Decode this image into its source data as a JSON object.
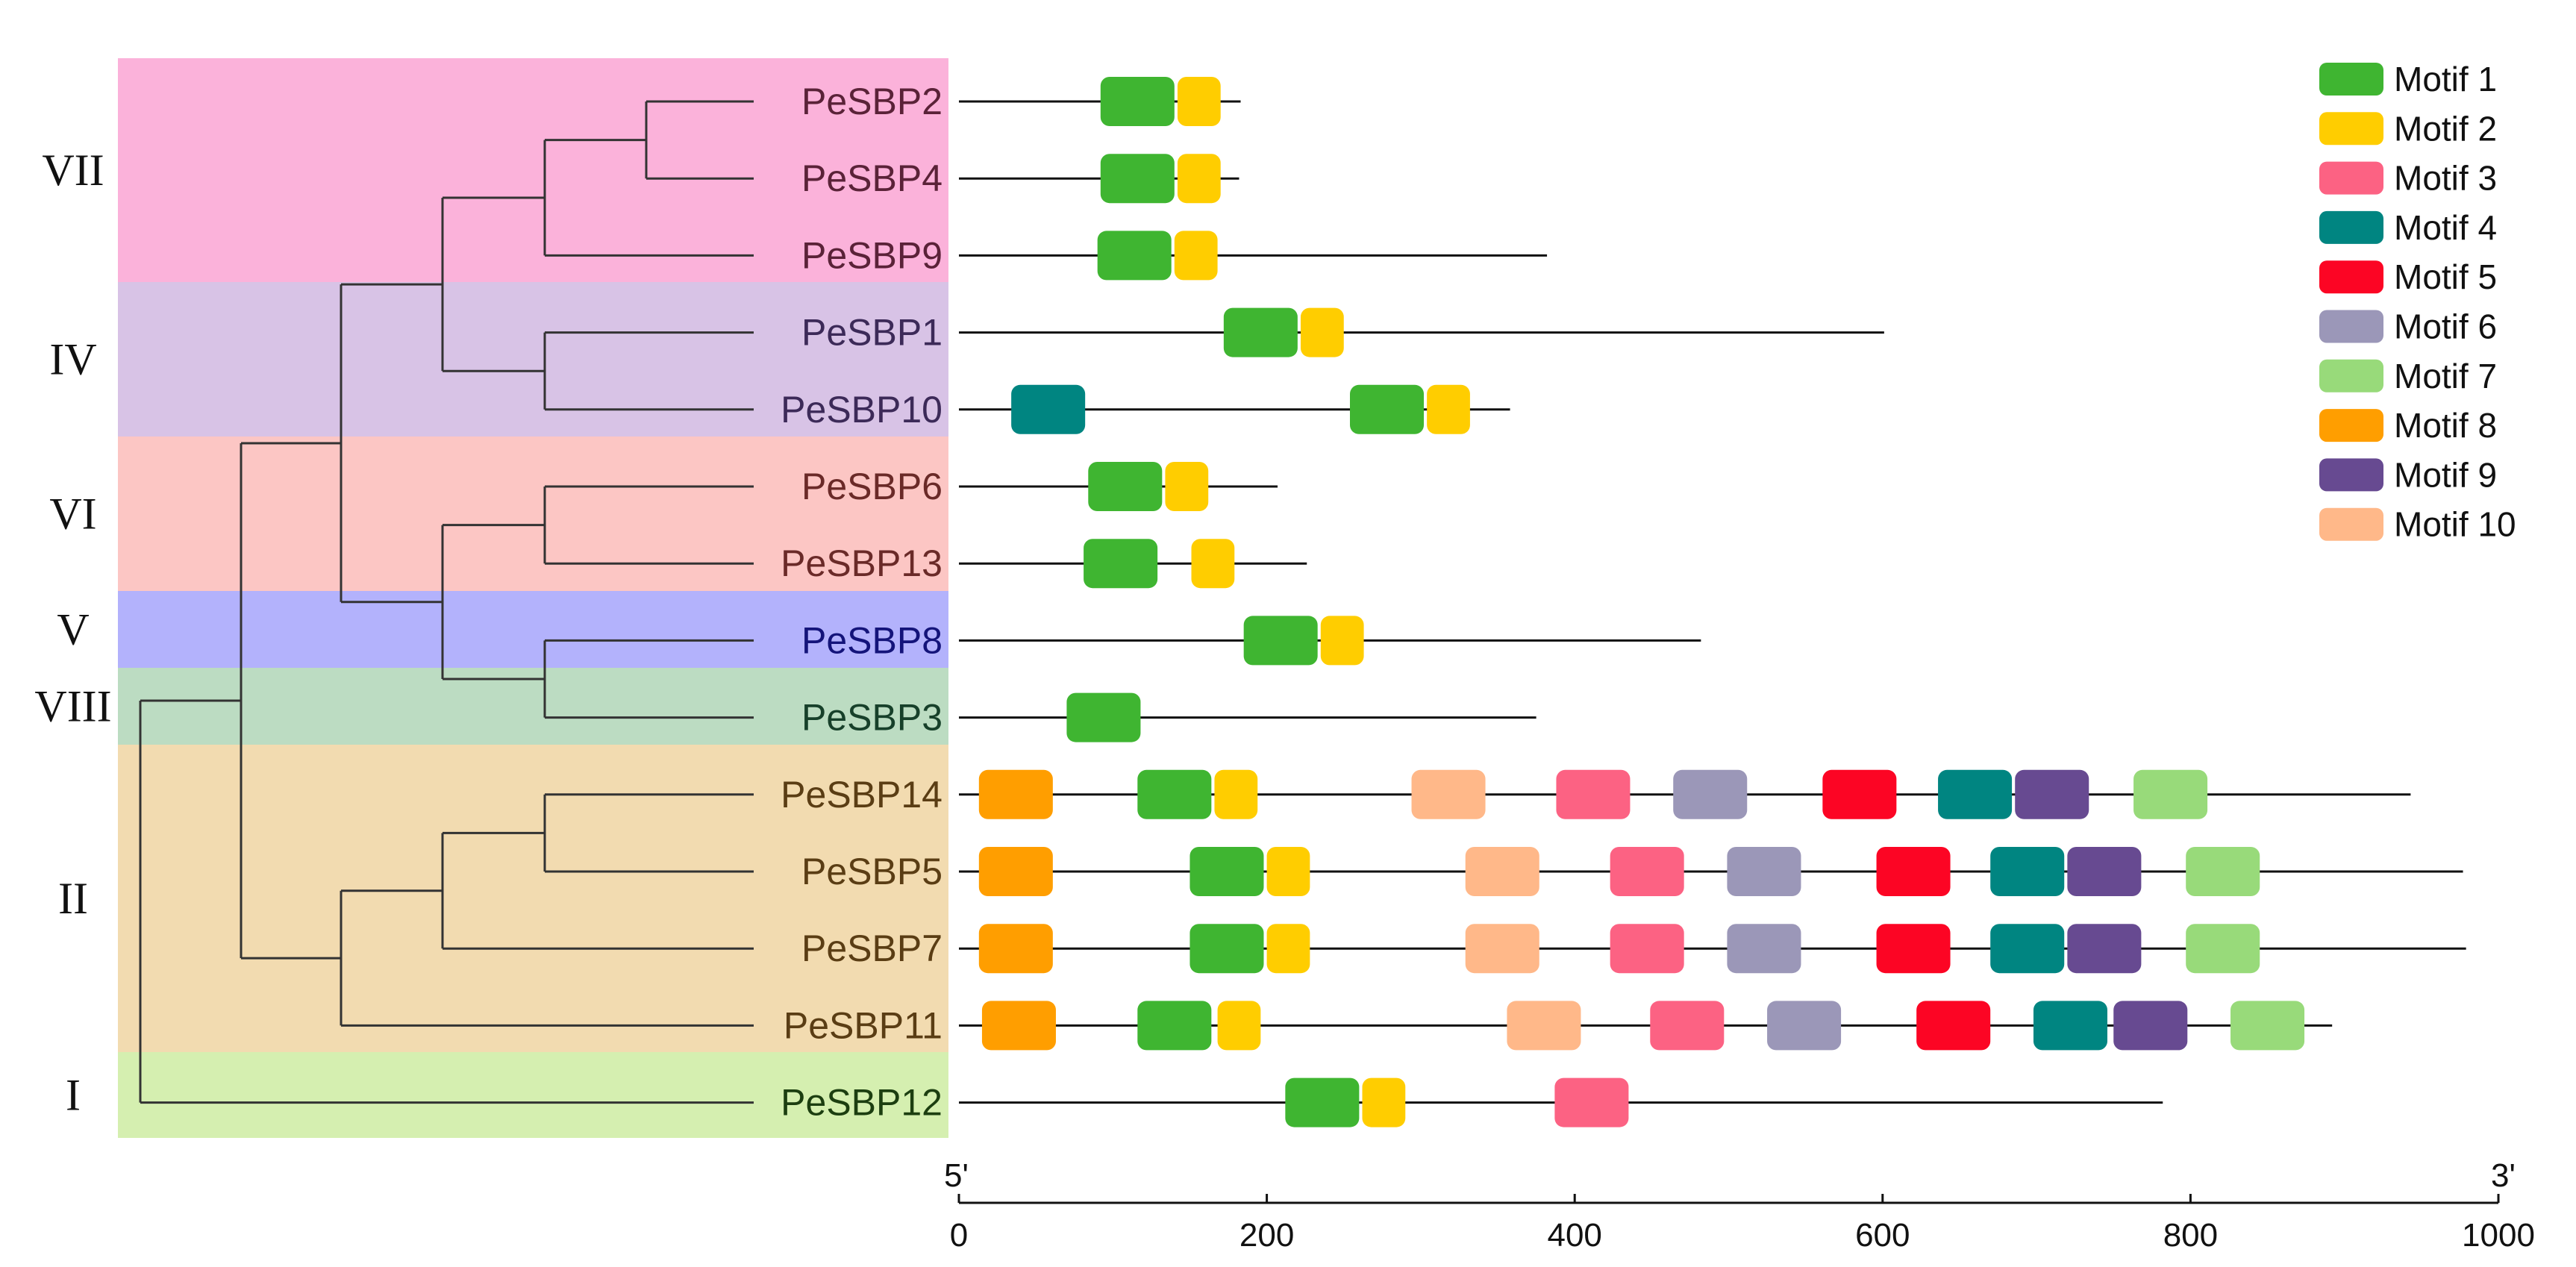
{
  "chart_data": {
    "type": "motif-diagram",
    "x_axis": {
      "min": 0,
      "max": 1000,
      "ticks": [
        0,
        200,
        400,
        600,
        800,
        1000
      ],
      "start_label": "5'",
      "end_label": "3'"
    },
    "groups": [
      {
        "label": "VII",
        "color": "#fbb2da",
        "rows": [
          0,
          2
        ]
      },
      {
        "label": "IV",
        "color": "#d8c3e6",
        "rows": [
          3,
          4
        ]
      },
      {
        "label": "VI",
        "color": "#fcc6c4",
        "rows": [
          5,
          6
        ]
      },
      {
        "label": "V",
        "color": "#b3b2fc",
        "rows": [
          7,
          7
        ]
      },
      {
        "label": "VIII",
        "color": "#bcdcc2",
        "rows": [
          8,
          8
        ]
      },
      {
        "label": "II",
        "color": "#f2dbb0",
        "rows": [
          9,
          12
        ]
      },
      {
        "label": "I",
        "color": "#d5efb0",
        "rows": [
          13,
          13
        ]
      }
    ],
    "genes": [
      {
        "name": "PeSBP2",
        "label_color": "#5a2238",
        "length": 183,
        "motifs": [
          [
            1,
            92,
            140
          ],
          [
            2,
            142,
            170
          ]
        ]
      },
      {
        "name": "PeSBP4",
        "label_color": "#5a2238",
        "length": 182,
        "motifs": [
          [
            1,
            92,
            140
          ],
          [
            2,
            142,
            170
          ]
        ]
      },
      {
        "name": "PeSBP9",
        "label_color": "#5a2238",
        "length": 382,
        "motifs": [
          [
            1,
            90,
            138
          ],
          [
            2,
            140,
            168
          ]
        ]
      },
      {
        "name": "PeSBP1",
        "label_color": "#3c2a58",
        "length": 601,
        "motifs": [
          [
            1,
            172,
            220
          ],
          [
            2,
            222,
            250
          ]
        ]
      },
      {
        "name": "PeSBP10",
        "label_color": "#3c2a58",
        "length": 358,
        "motifs": [
          [
            4,
            34,
            82
          ],
          [
            1,
            254,
            302
          ],
          [
            2,
            304,
            332
          ]
        ]
      },
      {
        "name": "PeSBP6",
        "label_color": "#6a2a28",
        "length": 207,
        "motifs": [
          [
            1,
            84,
            132
          ],
          [
            2,
            134,
            162
          ]
        ]
      },
      {
        "name": "PeSBP13",
        "label_color": "#6a2a28",
        "length": 226,
        "motifs": [
          [
            1,
            81,
            129
          ],
          [
            2,
            151,
            179
          ]
        ]
      },
      {
        "name": "PeSBP8",
        "label_color": "#14147a",
        "length": 482,
        "motifs": [
          [
            1,
            185,
            233
          ],
          [
            2,
            235,
            263
          ]
        ]
      },
      {
        "name": "PeSBP3",
        "label_color": "#17402a",
        "length": 375,
        "motifs": [
          [
            1,
            70,
            118
          ]
        ]
      },
      {
        "name": "PeSBP14",
        "label_color": "#5a3d14",
        "length": 943,
        "motifs": [
          [
            8,
            13,
            61
          ],
          [
            1,
            116,
            164
          ],
          [
            2,
            166,
            194
          ],
          [
            10,
            294,
            342
          ],
          [
            3,
            388,
            436
          ],
          [
            6,
            464,
            512
          ],
          [
            5,
            561,
            609
          ],
          [
            4,
            636,
            684
          ],
          [
            9,
            686,
            734
          ],
          [
            7,
            763,
            811
          ]
        ]
      },
      {
        "name": "PeSBP5",
        "label_color": "#5a3d14",
        "length": 977,
        "motifs": [
          [
            8,
            13,
            61
          ],
          [
            1,
            150,
            198
          ],
          [
            2,
            200,
            228
          ],
          [
            10,
            329,
            377
          ],
          [
            3,
            423,
            471
          ],
          [
            6,
            499,
            547
          ],
          [
            5,
            596,
            644
          ],
          [
            4,
            670,
            718
          ],
          [
            9,
            720,
            768
          ],
          [
            7,
            797,
            845
          ]
        ]
      },
      {
        "name": "PeSBP7",
        "label_color": "#5a3d14",
        "length": 979,
        "motifs": [
          [
            8,
            13,
            61
          ],
          [
            1,
            150,
            198
          ],
          [
            2,
            200,
            228
          ],
          [
            10,
            329,
            377
          ],
          [
            3,
            423,
            471
          ],
          [
            6,
            499,
            547
          ],
          [
            5,
            596,
            644
          ],
          [
            4,
            670,
            718
          ],
          [
            9,
            720,
            768
          ],
          [
            7,
            797,
            845
          ]
        ]
      },
      {
        "name": "PeSBP11",
        "label_color": "#5a3d14",
        "length": 892,
        "motifs": [
          [
            8,
            15,
            63
          ],
          [
            1,
            116,
            164
          ],
          [
            2,
            168,
            196
          ],
          [
            10,
            356,
            404
          ],
          [
            3,
            449,
            497
          ],
          [
            6,
            525,
            573
          ],
          [
            5,
            622,
            670
          ],
          [
            4,
            698,
            746
          ],
          [
            9,
            750,
            798
          ],
          [
            7,
            826,
            874
          ]
        ]
      },
      {
        "name": "PeSBP12",
        "label_color": "#1c3e10",
        "length": 782,
        "motifs": [
          [
            1,
            212,
            260
          ],
          [
            2,
            262,
            290
          ],
          [
            3,
            387,
            435
          ]
        ]
      }
    ],
    "motif_colors": [
      "#3fb531",
      "#ffcd00",
      "#fc6283",
      "#008581",
      "#fc0524",
      "#9b97b8",
      "#98da7a",
      "#ff9e00",
      "#674a91",
      "#ffb889"
    ],
    "legend": [
      "Motif 1",
      "Motif 2",
      "Motif 3",
      "Motif 4",
      "Motif 5",
      "Motif 6",
      "Motif 7",
      "Motif 8",
      "Motif 9",
      "Motif 10"
    ],
    "tree": {
      "line_color": "#333333",
      "nodes": [
        {
          "id": "n2_4",
          "depth": 5,
          "children": [
            0,
            1
          ]
        },
        {
          "id": "n9",
          "depth": 4,
          "children": [
            "n2_4",
            2
          ]
        },
        {
          "id": "n1_10",
          "depth": 4,
          "children": [
            3,
            4
          ]
        },
        {
          "id": "nA",
          "depth": 3,
          "children": [
            "n9",
            "n1_10"
          ]
        },
        {
          "id": "n6_13",
          "depth": 4,
          "children": [
            5,
            6
          ]
        },
        {
          "id": "n8_3",
          "depth": 4,
          "children": [
            7,
            8
          ]
        },
        {
          "id": "nB",
          "depth": 3,
          "children": [
            "n6_13",
            "n8_3"
          ]
        },
        {
          "id": "nC",
          "depth": 2,
          "children": [
            "nA",
            "nB"
          ]
        },
        {
          "id": "n14_5",
          "depth": 4,
          "children": [
            9,
            10
          ]
        },
        {
          "id": "n7",
          "depth": 3,
          "children": [
            "n14_5",
            11
          ]
        },
        {
          "id": "n11",
          "depth": 2,
          "children": [
            "n7",
            12
          ]
        },
        {
          "id": "nD",
          "depth": 1,
          "children": [
            "nC",
            "n11"
          ]
        },
        {
          "id": "root",
          "depth": 0,
          "children": [
            "nD",
            13
          ]
        }
      ]
    }
  }
}
